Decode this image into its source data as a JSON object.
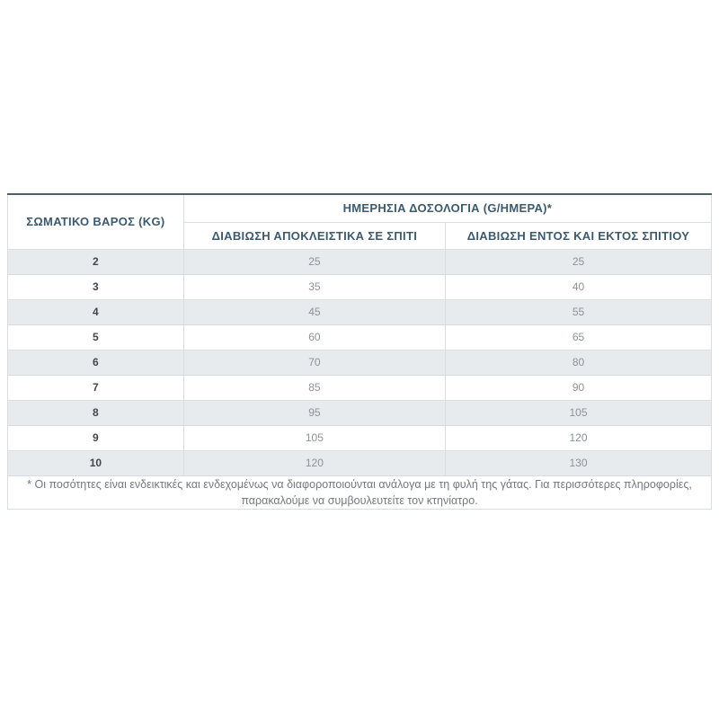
{
  "table": {
    "col1_header": "ΣΩΜΑΤΙΚΟ ΒΑΡΟΣ (KG)",
    "main_header": "ΗΜΕΡΗΣΙΑ ΔΟΣΟΛΟΓΙΑ (G/ΗΜΕΡΑ)*",
    "sub_headers": [
      "ΔΙΑΒΙΩΣΗ ΑΠΟΚΛΕΙΣΤΙΚΑ ΣΕ ΣΠΙΤΙ",
      "ΔΙΑΒΙΩΣΗ ΕΝΤΟΣ ΚΑΙ ΕΚΤΟΣ ΣΠΙΤΙΟΥ"
    ],
    "rows": [
      {
        "weight": "2",
        "indoor_only": "25",
        "indoor_outdoor": "25"
      },
      {
        "weight": "3",
        "indoor_only": "35",
        "indoor_outdoor": "40"
      },
      {
        "weight": "4",
        "indoor_only": "45",
        "indoor_outdoor": "55"
      },
      {
        "weight": "5",
        "indoor_only": "60",
        "indoor_outdoor": "65"
      },
      {
        "weight": "6",
        "indoor_only": "70",
        "indoor_outdoor": "80"
      },
      {
        "weight": "7",
        "indoor_only": "85",
        "indoor_outdoor": "90"
      },
      {
        "weight": "8",
        "indoor_only": "95",
        "indoor_outdoor": "105"
      },
      {
        "weight": "9",
        "indoor_only": "105",
        "indoor_outdoor": "120"
      },
      {
        "weight": "10",
        "indoor_only": "120",
        "indoor_outdoor": "130"
      }
    ],
    "footnote": "* Οι ποσότητες είναι ενδεικτικές και ενδεχομένως να διαφοροποιούνται ανάλογα με τη φυλή της γάτας. Για περισσότερες πληροφορίες, παρακαλούμε να συμβουλευτείτε τον κτηνίατρο."
  },
  "colors": {
    "header_text": "#3c5a6e",
    "top_border": "#47626f",
    "row_alt_bg": "#e8ebed",
    "weight_text": "#42474b",
    "value_text": "#8d9297",
    "footnote_text": "#75787c"
  }
}
